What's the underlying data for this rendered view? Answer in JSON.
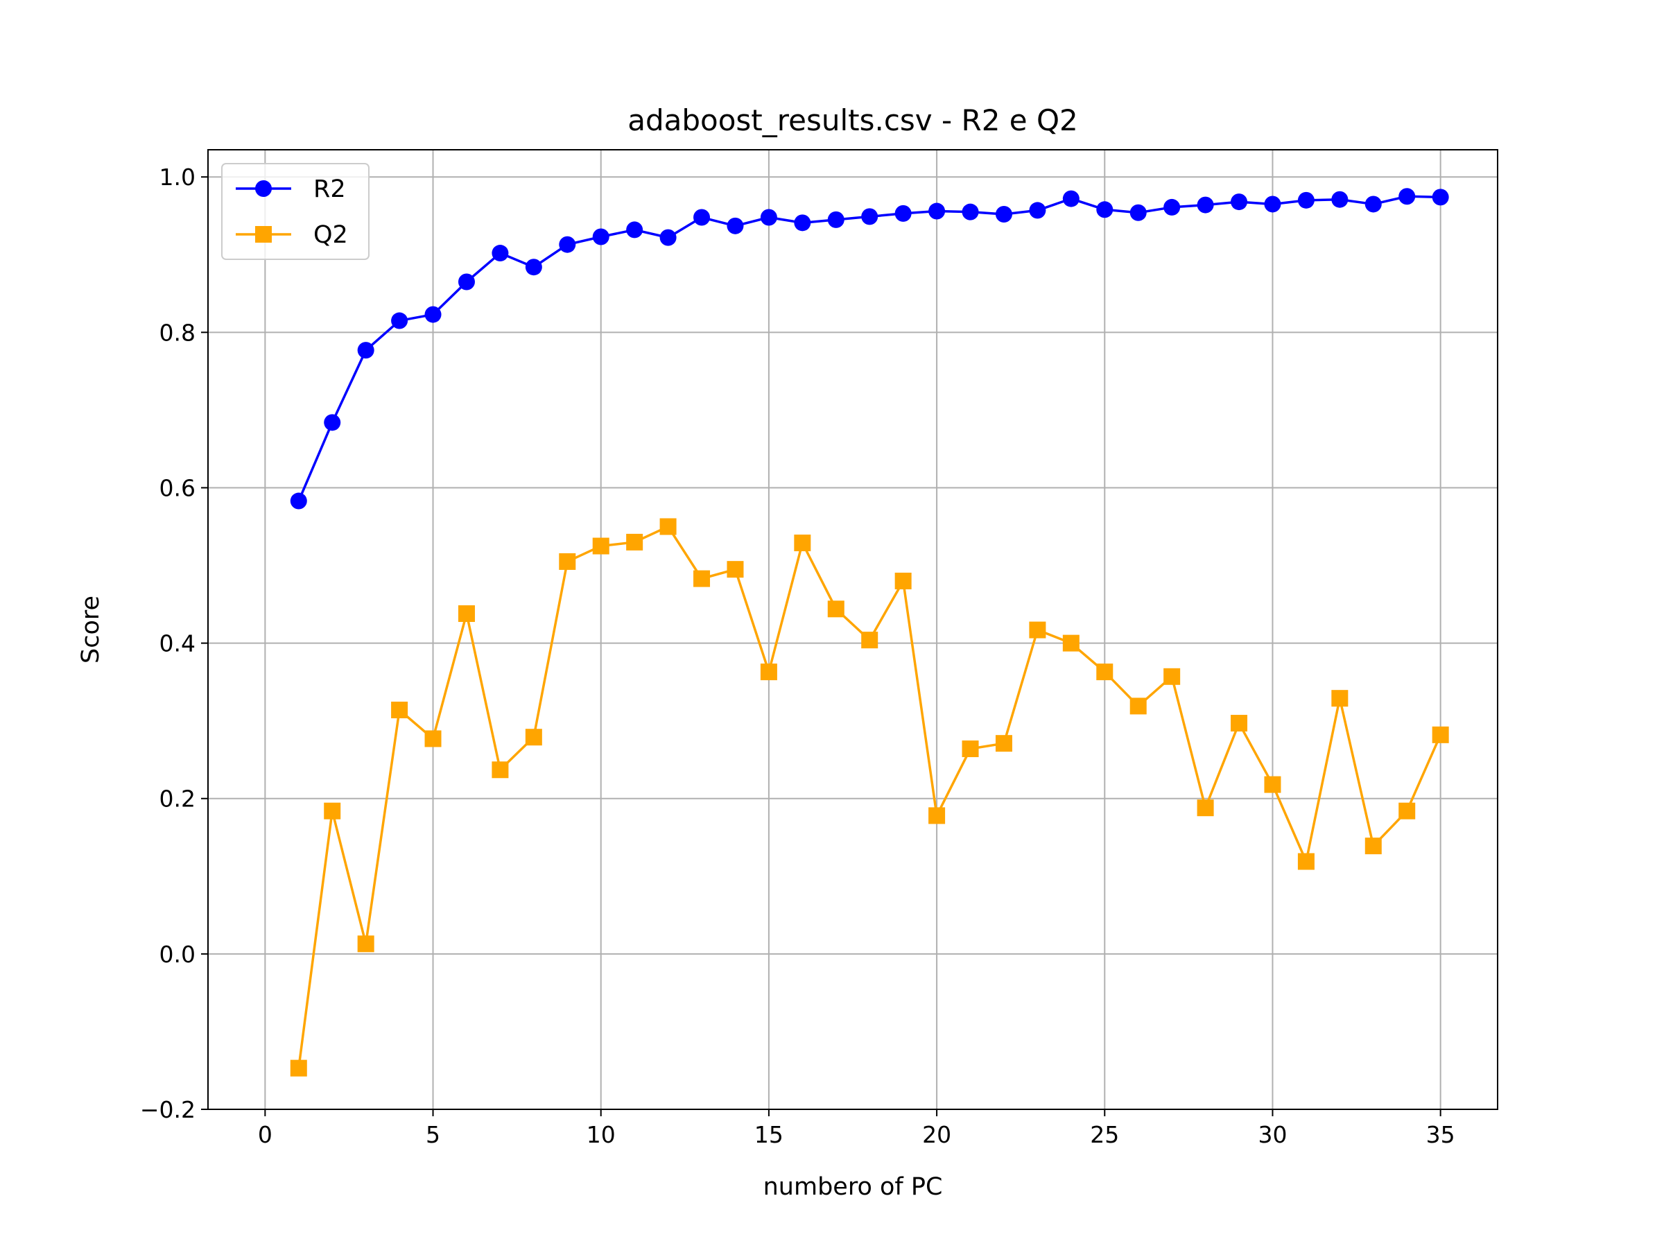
{
  "chart_data": {
    "type": "line",
    "title": "adaboost_results.csv - R2 e Q2",
    "xlabel": "numbero of PC",
    "ylabel": "Score",
    "xlim": [
      -1.7,
      36.7
    ],
    "ylim": [
      -0.2,
      1.035
    ],
    "xticks": [
      0,
      5,
      10,
      15,
      20,
      25,
      30,
      35
    ],
    "yticks": [
      -0.2,
      0.0,
      0.2,
      0.4,
      0.6,
      0.8,
      1.0
    ],
    "xtick_labels": [
      "0",
      "5",
      "10",
      "15",
      "20",
      "25",
      "30",
      "35"
    ],
    "ytick_labels": [
      "−0.2",
      "0.0",
      "0.2",
      "0.4",
      "0.6",
      "0.8",
      "1.0"
    ],
    "grid": true,
    "legend_position": "top-left",
    "x": [
      1,
      2,
      3,
      4,
      5,
      6,
      7,
      8,
      9,
      10,
      11,
      12,
      13,
      14,
      15,
      16,
      17,
      18,
      19,
      20,
      21,
      22,
      23,
      24,
      25,
      26,
      27,
      28,
      29,
      30,
      31,
      32,
      33,
      34,
      35
    ],
    "series": [
      {
        "name": "R2",
        "color": "#0000ff",
        "marker": "circle",
        "values": [
          0.583,
          0.684,
          0.777,
          0.815,
          0.823,
          0.865,
          0.902,
          0.884,
          0.913,
          0.923,
          0.932,
          0.922,
          0.948,
          0.937,
          0.948,
          0.941,
          0.945,
          0.949,
          0.953,
          0.956,
          0.955,
          0.952,
          0.957,
          0.972,
          0.958,
          0.954,
          0.961,
          0.964,
          0.968,
          0.965,
          0.97,
          0.971,
          0.965,
          0.975,
          0.974
        ]
      },
      {
        "name": "Q2",
        "color": "#ffa500",
        "marker": "square",
        "values": [
          -0.147,
          0.184,
          0.013,
          0.314,
          0.277,
          0.438,
          0.237,
          0.279,
          0.505,
          0.525,
          0.53,
          0.55,
          0.483,
          0.495,
          0.363,
          0.529,
          0.444,
          0.404,
          0.48,
          0.178,
          0.264,
          0.271,
          0.417,
          0.4,
          0.363,
          0.319,
          0.357,
          0.188,
          0.297,
          0.218,
          0.119,
          0.329,
          0.139,
          0.184,
          0.282
        ]
      }
    ]
  }
}
